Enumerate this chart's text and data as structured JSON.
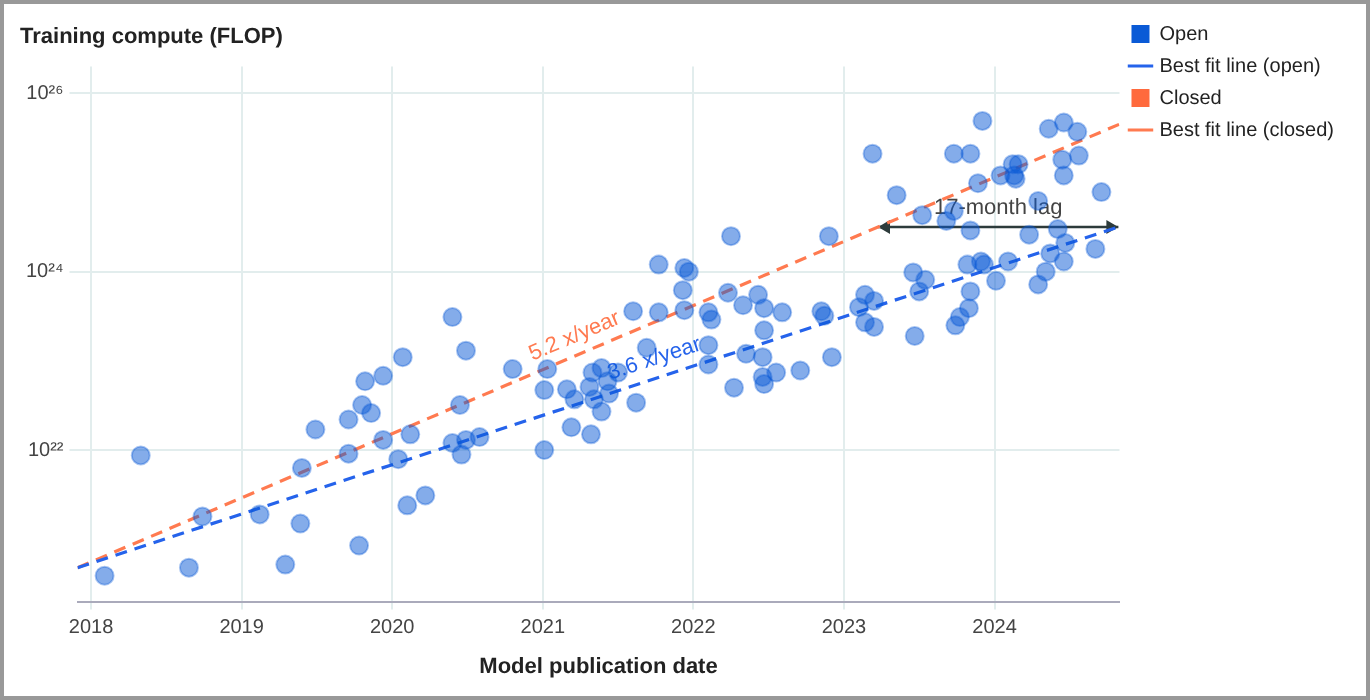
{
  "chart_data": {
    "type": "scatter",
    "ylabel": "Training compute (FLOP)",
    "xlabel": "Model publication date",
    "xlim": [
      2017.91,
      2024.83
    ],
    "xticks": [
      2018,
      2019,
      2020,
      2021,
      2022,
      2023,
      2024
    ],
    "ylim": [
      2e+20,
      2e+26
    ],
    "yticks": [
      {
        "value": 1e+22,
        "label": "10²²"
      },
      {
        "value": 1e+24,
        "label": "10²⁴"
      },
      {
        "value": 1e+26,
        "label": "10²⁶"
      }
    ],
    "log": "y",
    "grid": true,
    "legend": "top right",
    "series": [
      {
        "name": "Open",
        "marker": "circle",
        "color": "#0a5ad6",
        "x": [
          2018.09,
          2018.33,
          2018.65,
          2018.74,
          2019.12,
          2019.29,
          2019.39,
          2019.4,
          2019.49,
          2019.71,
          2019.71,
          2019.78,
          2019.8,
          2019.82,
          2019.86,
          2019.94,
          2019.94,
          2020.04,
          2020.07,
          2020.1,
          2020.12,
          2020.22,
          2020.4,
          2020.4,
          2020.45,
          2020.46,
          2020.49,
          2020.49,
          2020.58,
          2020.8,
          2021.01,
          2021.01,
          2021.03,
          2021.16,
          2021.19,
          2021.21,
          2021.31,
          2021.32,
          2021.33,
          2021.34,
          2021.39,
          2021.39,
          2021.43,
          2021.44,
          2021.5,
          2021.6,
          2021.62,
          2021.69,
          2021.77,
          2021.77,
          2021.93,
          2021.94,
          2021.94,
          2021.97,
          2022.1,
          2022.1,
          2022.1,
          2022.12,
          2022.23,
          2022.25,
          2022.27,
          2022.33,
          2022.35,
          2022.43,
          2022.47,
          2022.47,
          2022.46,
          2022.46,
          2022.47,
          2022.55,
          2022.59,
          2022.71,
          2022.85,
          2022.87,
          2022.9,
          2022.92,
          2023.1,
          2023.14,
          2023.14,
          2023.19,
          2023.2,
          2023.2,
          2023.35,
          2023.46,
          2023.47,
          2023.5,
          2023.52,
          2023.54,
          2023.68,
          2023.73,
          2023.73,
          2023.74,
          2023.77,
          2023.82,
          2023.83,
          2023.84,
          2023.84,
          2023.84,
          2023.89,
          2023.91,
          2023.92,
          2023.93,
          2024.01,
          2024.04,
          2024.09,
          2024.12,
          2024.13,
          2024.14,
          2024.16,
          2024.23,
          2024.29,
          2024.29,
          2024.34,
          2024.36,
          2024.37,
          2024.42,
          2024.45,
          2024.46,
          2024.46,
          2024.46,
          2024.47,
          2024.55,
          2024.56,
          2024.67,
          2024.71
        ],
        "values": [
          3.9e+20,
          8.7e+21,
          4.8e+20,
          1.8e+21,
          1.9e+21,
          5.2e+20,
          1.5e+21,
          6.3e+21,
          1.7e+22,
          2.2e+22,
          9.1e+21,
          8.5e+20,
          3.2e+22,
          5.9e+22,
          2.6e+22,
          6.8e+22,
          1.3e+22,
          7.9e+21,
          1.1e+23,
          2.4e+21,
          1.5e+22,
          3.1e+21,
          3.1e+23,
          1.2e+22,
          3.2e+22,
          8.9e+21,
          1.3e+23,
          1.3e+22,
          1.4e+22,
          8.1e+22,
          4.7e+22,
          1e+22,
          8.1e+22,
          4.8e+22,
          1.8e+22,
          3.7e+22,
          5.1e+22,
          1.5e+22,
          7.4e+22,
          3.7e+22,
          2.7e+22,
          8.3e+22,
          5.9e+22,
          4.3e+22,
          7.4e+22,
          3.6e+23,
          3.4e+22,
          1.4e+23,
          1.2e+24,
          3.5e+23,
          6.2e+23,
          1.1e+24,
          3.7e+23,
          1e+24,
          1.5e+23,
          3.5e+23,
          9.1e+22,
          2.9e+23,
          5.8e+23,
          2.5e+24,
          5e+22,
          4.2e+23,
          1.2e+23,
          5.5e+23,
          3.9e+23,
          2.2e+23,
          1.1e+23,
          6.6e+22,
          5.5e+22,
          7.4e+22,
          3.5e+23,
          7.8e+22,
          3.6e+23,
          3.2e+23,
          2.5e+24,
          1.1e+23,
          4e+23,
          5.5e+23,
          2.7e+23,
          2.1e+25,
          4.7e+23,
          2.4e+23,
          7.2e+24,
          9.8e+23,
          1.9e+23,
          6e+23,
          4.3e+24,
          8.1e+23,
          3.7e+24,
          2.1e+25,
          4.8e+24,
          2.5e+23,
          3.1e+23,
          1.2e+24,
          3.9e+23,
          6e+23,
          2.1e+25,
          2.9e+24,
          9.8e+24,
          1.3e+24,
          4.9e+25,
          1.2e+24,
          7.9e+23,
          1.2e+25,
          1.3e+24,
          1.6e+25,
          1.2e+25,
          1.1e+25,
          1.6e+25,
          2.6e+24,
          6.2e+24,
          7.2e+23,
          1e+24,
          4e+25,
          1.6e+24,
          3e+24,
          1.8e+25,
          1.2e+25,
          1.3e+24,
          4.7e+25,
          2.1e+24,
          3.7e+25,
          2e+25,
          1.8e+24,
          7.8e+24
        ]
      },
      {
        "name": "Best fit line (open)",
        "type": "line",
        "color": "#2563eb",
        "line_style": "dashed",
        "x": [
          2017.91,
          2024.83
        ],
        "values": [
          4.8e+20,
          3.2e+24
        ]
      },
      {
        "name": "Closed",
        "type": "scatter",
        "color": "#ff6a3d"
      },
      {
        "name": "Best fit line (closed)",
        "type": "line",
        "color": "#ff7a50",
        "line_style": "dashed",
        "x": [
          2017.91,
          2024.83
        ],
        "values": [
          4.8e+20,
          4.5e+25
        ]
      }
    ],
    "annotations": [
      {
        "text": "5.2 x/year",
        "x": 2021.26,
        "y": 1.2e+23
      },
      {
        "text": "3.6 x/year",
        "x": 2021.78,
        "y": 6.6e+22
      },
      "17-month lag"
    ]
  }
}
